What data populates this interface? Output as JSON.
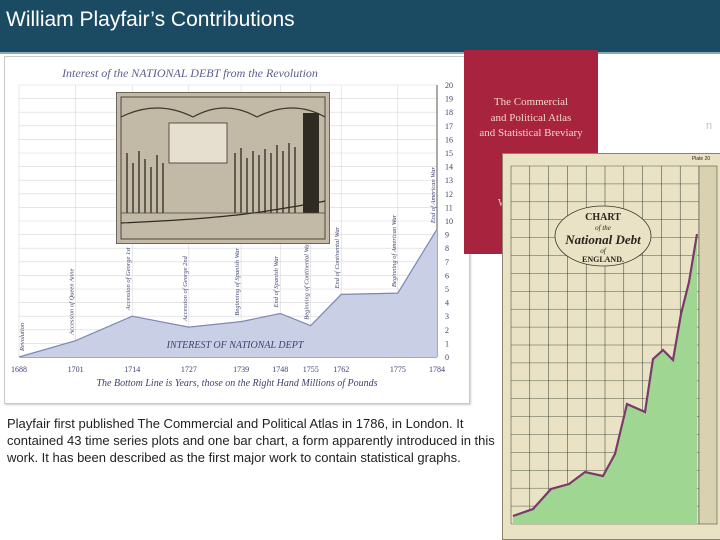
{
  "slide": {
    "title": "William Playfair’s Contributions",
    "caption": "Playfair first published The Commercial and Political Atlas in 1786, in London. It contained 43 time series plots and one bar chart, a form apparently introduced in this work. It has been described as the first major work to contain statistical graphs."
  },
  "main_chart": {
    "title": "Interest of the NATIONAL DEBT from the Revolution",
    "area_label": "INTEREST OF NATIONAL DEPT",
    "bottom_note": "The Bottom Line is Years, those on the Right Hand Millions of Pounds",
    "colors": {
      "fill": "#c9d0e6",
      "line": "#7d86b7",
      "grid": "#d7d7d7",
      "text": "#5b5f8f"
    }
  },
  "chart_data": {
    "type": "area",
    "x": [
      1688,
      1701,
      1714,
      1727,
      1739,
      1748,
      1755,
      1762,
      1775,
      1784
    ],
    "y": [
      0,
      1.2,
      3.0,
      2.2,
      2.6,
      3.2,
      2.3,
      4.6,
      4.7,
      9.4
    ],
    "title": "Interest of the NATIONAL DEBT from the Revolution",
    "xlabel": "The Bottom Line is Years, those on the Right Hand Millions of Pounds",
    "ylabel": "",
    "ylim": [
      0,
      20
    ],
    "xticks": [
      "1688",
      "1701",
      "1714",
      "1727",
      "1739",
      "1748",
      "1755",
      "1762",
      "1775",
      "1784"
    ],
    "yticks": [
      "0",
      "1",
      "2",
      "3",
      "4",
      "5",
      "6",
      "7",
      "8",
      "9",
      "10",
      "11",
      "12",
      "13",
      "14",
      "15",
      "16",
      "17",
      "18",
      "19",
      "20"
    ],
    "grid": true,
    "annotations": [
      {
        "text": "Revolution",
        "x": 1688,
        "y": 0
      },
      {
        "text": "Accession of Queen Anne",
        "x": 1701,
        "y": 1.2
      },
      {
        "text": "Accession of George 1st",
        "x": 1714,
        "y": 3.0
      },
      {
        "text": "Accession of George 2nd",
        "x": 1727,
        "y": 2.2
      },
      {
        "text": "Beginning of Spanish War",
        "x": 1739,
        "y": 2.6
      },
      {
        "text": "End of Spanish War",
        "x": 1748,
        "y": 3.2
      },
      {
        "text": "Beginning of Continental War",
        "x": 1755,
        "y": 2.3
      },
      {
        "text": "End of Continental War",
        "x": 1762,
        "y": 4.6
      },
      {
        "text": "Beginning of American War",
        "x": 1775,
        "y": 4.7
      },
      {
        "text": "End of American War",
        "x": 1784,
        "y": 9.4
      }
    ]
  },
  "book_cover": {
    "line1": "The Commercial",
    "line2": "and Political Atlas",
    "line3": "and Statistical Breviary",
    "letter": "W"
  },
  "debt_chart": {
    "plate_label": "Plate 20",
    "title_top": "CHART",
    "title_mid": "of the",
    "title_main": "National Debt",
    "title_low": "of",
    "title_bottom": "ENGLAND.",
    "colors": {
      "paper": "#e9e2c5",
      "fill": "#9fd692",
      "line": "#7a3a6a",
      "grid": "#2e3a2a"
    }
  },
  "side_mark": "n"
}
